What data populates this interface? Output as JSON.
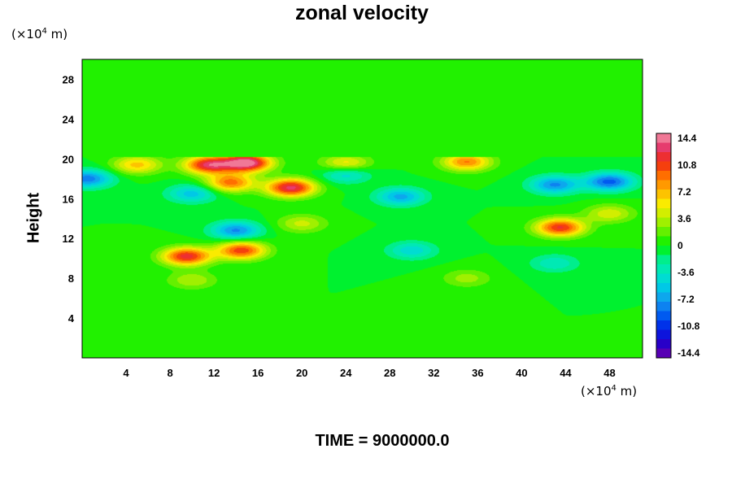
{
  "chart_data": {
    "type": "heatmap",
    "title": "zonal velocity",
    "ylabel": "Height",
    "y_unit": {
      "prefix": "(×10",
      "exp": "4",
      "suffix": " m)"
    },
    "x_unit": {
      "prefix": "(×10",
      "exp": "4",
      "suffix": " m)"
    },
    "xlim": [
      0,
      51
    ],
    "ylim": [
      0,
      30
    ],
    "x_ticks": [
      4,
      8,
      12,
      16,
      20,
      24,
      28,
      32,
      36,
      40,
      44,
      48
    ],
    "y_ticks": [
      4,
      8,
      12,
      16,
      20,
      24,
      28
    ],
    "colorbar": {
      "range": [
        -14.4,
        14.4
      ],
      "ticks": [
        "14.4",
        "10.8",
        "7.2",
        "3.6",
        "0",
        "-3.6",
        "-7.2",
        "-10.8",
        "-14.4"
      ],
      "levels": 24
    },
    "features": [
      {
        "x": 15,
        "y": 19.6,
        "value": 14.4
      },
      {
        "x": 11.5,
        "y": 19.4,
        "value": 12.0
      },
      {
        "x": 19,
        "y": 17.1,
        "value": 12.5
      },
      {
        "x": 13.5,
        "y": 17.6,
        "value": 9.0
      },
      {
        "x": 9.5,
        "y": 10.2,
        "value": 11.5
      },
      {
        "x": 14.5,
        "y": 10.8,
        "value": 10.5
      },
      {
        "x": 43.5,
        "y": 13.1,
        "value": 11.0
      },
      {
        "x": 35,
        "y": 19.7,
        "value": 8.5
      },
      {
        "x": 5,
        "y": 19.4,
        "value": 6.5
      },
      {
        "x": 24,
        "y": 19.5,
        "value": 6.0
      },
      {
        "x": 48,
        "y": 17.7,
        "value": -9.0
      },
      {
        "x": 43,
        "y": 17.4,
        "value": -7.5
      },
      {
        "x": 0.5,
        "y": 18.0,
        "value": -8.0
      },
      {
        "x": 14,
        "y": 12.8,
        "value": -7.5
      },
      {
        "x": 29,
        "y": 16.2,
        "value": -6.5
      },
      {
        "x": 10,
        "y": 16.5,
        "value": -5.5
      },
      {
        "x": 24,
        "y": 18.5,
        "value": -5.0
      },
      {
        "x": 48,
        "y": 14.5,
        "value": 4.5
      },
      {
        "x": 30,
        "y": 10.8,
        "value": -4.5
      },
      {
        "x": 20,
        "y": 13.5,
        "value": 4.0
      },
      {
        "x": 35,
        "y": 8.0,
        "value": 3.0
      },
      {
        "x": 10,
        "y": 7.8,
        "value": 3.5
      },
      {
        "x": 43,
        "y": 9.5,
        "value": -3.5
      }
    ]
  },
  "footer": {
    "time_label": "TIME = 9000000.0"
  }
}
